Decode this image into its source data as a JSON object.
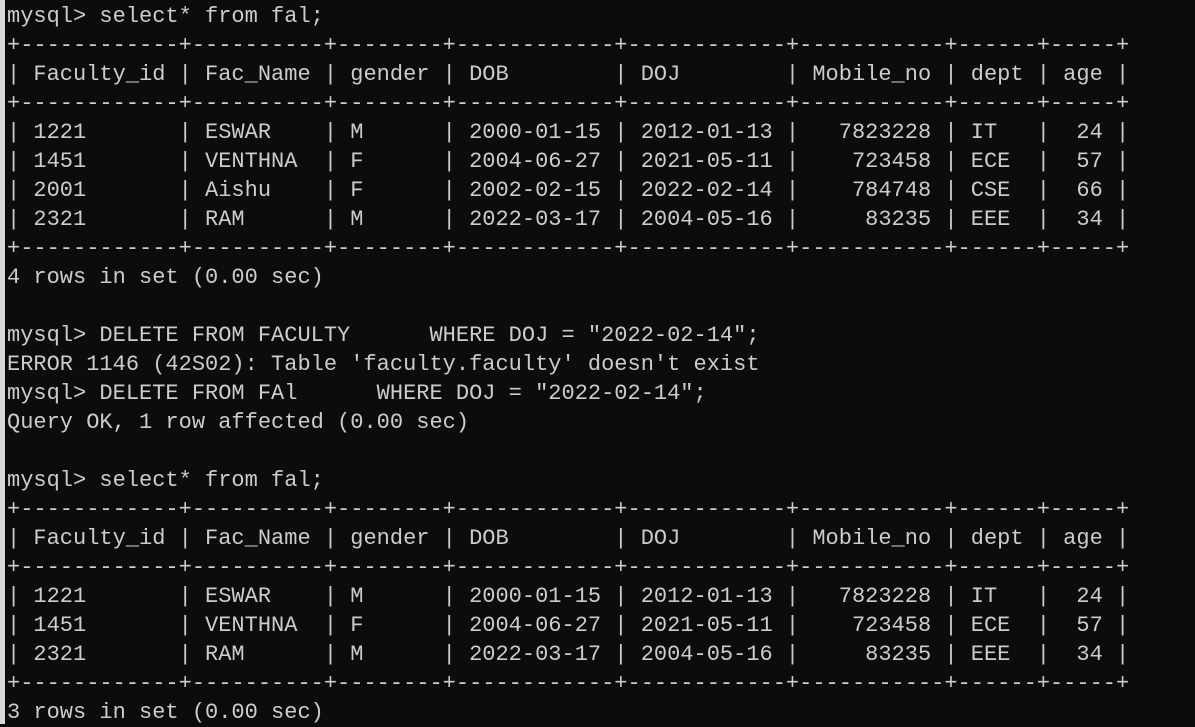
{
  "colors": {
    "background": "#0c0c0c",
    "text": "#cccccc"
  },
  "columns": [
    "Faculty_id",
    "Fac_Name",
    "gender",
    "DOB",
    "DOJ",
    "Mobile_no",
    "dept",
    "age"
  ],
  "right_aligned": [
    false,
    false,
    false,
    false,
    false,
    true,
    false,
    true
  ],
  "session": [
    {
      "type": "cmd",
      "text": "mysql> select* from fal;"
    },
    {
      "type": "table",
      "rows": [
        [
          "1221",
          "ESWAR",
          "M",
          "2000-01-15",
          "2012-01-13",
          "7823228",
          "IT",
          "24"
        ],
        [
          "1451",
          "VENTHNA",
          "F",
          "2004-06-27",
          "2021-05-11",
          "723458",
          "ECE",
          "57"
        ],
        [
          "2001",
          "Aishu",
          "F",
          "2002-02-15",
          "2022-02-14",
          "784748",
          "CSE",
          "66"
        ],
        [
          "2321",
          "RAM",
          "M",
          "2022-03-17",
          "2004-05-16",
          "83235",
          "EEE",
          "34"
        ]
      ]
    },
    {
      "type": "out",
      "text": "4 rows in set (0.00 sec)"
    },
    {
      "type": "out",
      "text": ""
    },
    {
      "type": "cmd",
      "text": "mysql> DELETE FROM FACULTY      WHERE DOJ = \"2022-02-14\";"
    },
    {
      "type": "out",
      "text": "ERROR 1146 (42S02): Table 'faculty.faculty' doesn't exist"
    },
    {
      "type": "cmd",
      "text": "mysql> DELETE FROM FAl      WHERE DOJ = \"2022-02-14\";"
    },
    {
      "type": "out",
      "text": "Query OK, 1 row affected (0.00 sec)"
    },
    {
      "type": "out",
      "text": ""
    },
    {
      "type": "cmd",
      "text": "mysql> select* from fal;"
    },
    {
      "type": "table",
      "rows": [
        [
          "1221",
          "ESWAR",
          "M",
          "2000-01-15",
          "2012-01-13",
          "7823228",
          "IT",
          "24"
        ],
        [
          "1451",
          "VENTHNA",
          "F",
          "2004-06-27",
          "2021-05-11",
          "723458",
          "ECE",
          "57"
        ],
        [
          "2321",
          "RAM",
          "M",
          "2022-03-17",
          "2004-05-16",
          "83235",
          "EEE",
          "34"
        ]
      ]
    },
    {
      "type": "out",
      "text": "3 rows in set (0.00 sec)"
    }
  ]
}
